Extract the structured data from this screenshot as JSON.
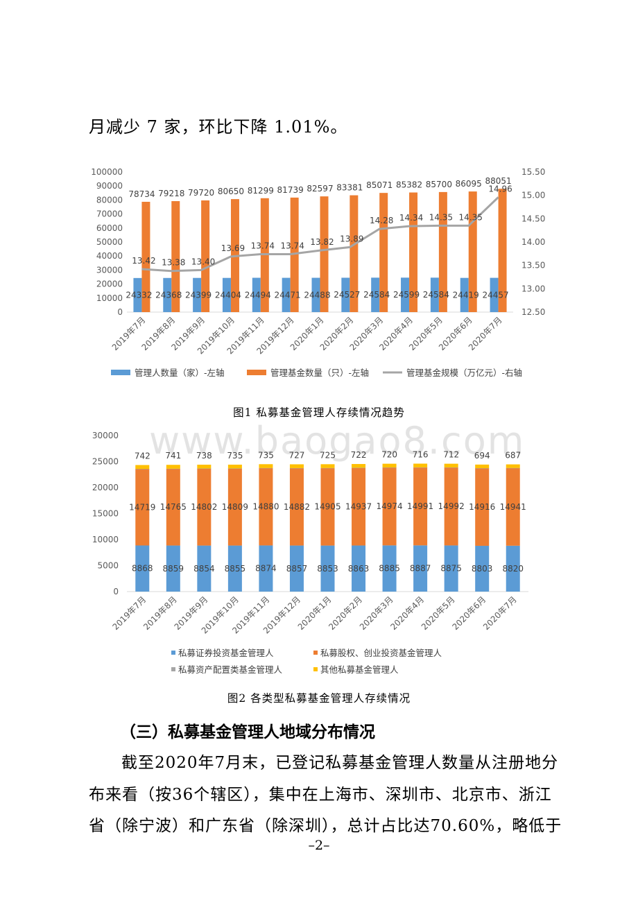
{
  "top_text": "月减少 7 家，环比下降 1.01%。",
  "watermark": "www.baogao8.com",
  "chart_data": [
    {
      "type": "bar",
      "categories": [
        "2019年7月",
        "2019年8月",
        "2019年9月",
        "2019年10月",
        "2019年11月",
        "2019年12月",
        "2020年1月",
        "2020年2月",
        "2020年3月",
        "2020年4月",
        "2020年5月",
        "2020年6月",
        "2020年7月"
      ],
      "series": [
        {
          "name": "管理人数量（家）-左轴",
          "type": "bar",
          "axis": "left",
          "color": "#5B9BD5",
          "values": [
            24332,
            24368,
            24399,
            24404,
            24494,
            24471,
            24488,
            24527,
            24584,
            24599,
            24584,
            24419,
            24457
          ]
        },
        {
          "name": "管理基金数量（只）-左轴",
          "type": "bar",
          "axis": "left",
          "color": "#ED7D31",
          "values": [
            78734,
            79218,
            79720,
            80650,
            81299,
            81739,
            82597,
            83381,
            85071,
            85382,
            85700,
            86095,
            88051
          ]
        },
        {
          "name": "管理基金规模（万亿元）-右轴",
          "type": "line",
          "axis": "right",
          "color": "#A5A5A5",
          "values": [
            13.42,
            13.38,
            13.4,
            13.69,
            13.74,
            13.74,
            13.82,
            13.89,
            14.28,
            14.34,
            14.35,
            14.35,
            14.96
          ]
        }
      ],
      "left_ticks": [
        "0",
        "10000",
        "20000",
        "30000",
        "40000",
        "50000",
        "60000",
        "70000",
        "80000",
        "90000",
        "100000"
      ],
      "right_ticks": [
        "12.50",
        "13.00",
        "13.50",
        "14.00",
        "14.50",
        "15.00",
        "15.50"
      ],
      "ylim_left": [
        0,
        100000
      ],
      "ylim_right": [
        12.5,
        15.5
      ],
      "title": "图1 私募基金管理人存续情况趋势",
      "legend": "bottom"
    },
    {
      "type": "bar",
      "stacked": true,
      "categories": [
        "2019年7月",
        "2019年8月",
        "2019年9月",
        "2019年10月",
        "2019年11月",
        "2019年12月",
        "2020年1月",
        "2020年2月",
        "2020年3月",
        "2020年4月",
        "2020年5月",
        "2020年6月",
        "2020年7月"
      ],
      "series": [
        {
          "name": "私募证券投资基金管理人",
          "color": "#5B9BD5",
          "values": [
            8868,
            8859,
            8854,
            8855,
            8874,
            8857,
            8853,
            8863,
            8885,
            8887,
            8875,
            8803,
            8820
          ]
        },
        {
          "name": "私募股权、创业投资基金管理人",
          "color": "#ED7D31",
          "values": [
            14719,
            14765,
            14802,
            14809,
            14880,
            14882,
            14905,
            14937,
            14974,
            14991,
            14992,
            14916,
            14941
          ]
        },
        {
          "name": "私募资产配置类基金管理人",
          "color": "#A5A5A5",
          "values": [
            3,
            3,
            5,
            5,
            5,
            5,
            5,
            5,
            5,
            5,
            5,
            6,
            9
          ]
        },
        {
          "name": "其他私募基金管理人",
          "color": "#FFC000",
          "values": [
            742,
            741,
            738,
            735,
            735,
            727,
            725,
            722,
            720,
            716,
            712,
            694,
            687
          ]
        }
      ],
      "labels_shown": {
        "bottom": [
          8868,
          8859,
          8854,
          8855,
          8874,
          8857,
          8853,
          8863,
          8885,
          8887,
          8875,
          8803,
          8820
        ],
        "middle": [
          14719,
          14765,
          14802,
          14809,
          14880,
          14882,
          14905,
          14937,
          14974,
          14991,
          14992,
          14916,
          14941
        ],
        "top": [
          742,
          741,
          738,
          735,
          735,
          727,
          725,
          722,
          720,
          716,
          712,
          694,
          687
        ]
      },
      "left_ticks": [
        "0",
        "5000",
        "10000",
        "15000",
        "20000",
        "25000",
        "30000"
      ],
      "ylim": [
        0,
        30000
      ],
      "title": "图2 各类型私募基金管理人存续情况",
      "legend": "bottom"
    }
  ],
  "section_heading": "（三）私募基金管理人地域分布情况",
  "body_lines": [
    "截至2020年7月末，已登记私募基金管理人数量从注册地分",
    "布来看（按36个辖区），集中在上海市、深圳市、北京市、浙江",
    "省（除宁波）和广东省（除深圳），总计占比达70.60%，略低于"
  ],
  "page_number": "–2–"
}
